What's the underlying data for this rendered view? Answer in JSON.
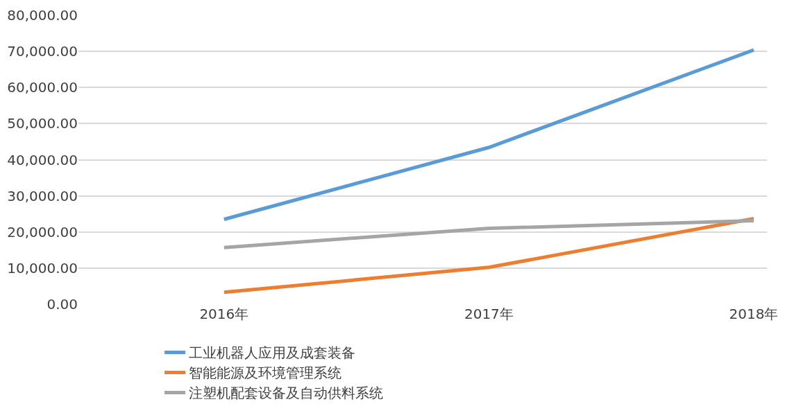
{
  "chart_data": {
    "type": "line",
    "categories": [
      "2016年",
      "2017年",
      "2018年"
    ],
    "series": [
      {
        "name": "工业机器人应用及成套装备",
        "color": "#5b9bd5",
        "values": [
          23500,
          43400,
          70400
        ]
      },
      {
        "name": "智能能源及环境管理系统",
        "color": "#ed7d31",
        "values": [
          3300,
          10200,
          23700
        ]
      },
      {
        "name": "注塑机配套设备及自动供料系统",
        "color": "#a5a5a5",
        "values": [
          15700,
          21000,
          23100
        ]
      }
    ],
    "ylim": [
      0,
      80000
    ],
    "yticks": [
      {
        "value": 0,
        "label": "0.00"
      },
      {
        "value": 10000,
        "label": "10,000.00"
      },
      {
        "value": 20000,
        "label": "20,000.00"
      },
      {
        "value": 30000,
        "label": "30,000.00"
      },
      {
        "value": 40000,
        "label": "40,000.00"
      },
      {
        "value": 50000,
        "label": "50,000.00"
      },
      {
        "value": 60000,
        "label": "60,000.00"
      },
      {
        "value": 70000,
        "label": "70,000.00"
      },
      {
        "value": 80000,
        "label": "80,000.00"
      }
    ],
    "grid": "y",
    "legend": "bottom",
    "marker": "none",
    "line_style": "solid"
  }
}
